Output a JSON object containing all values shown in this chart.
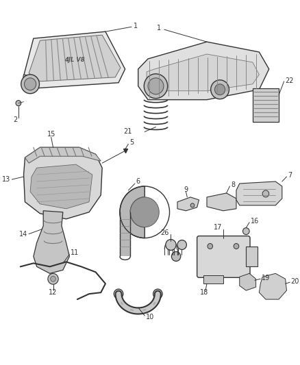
{
  "bg_color": "#ffffff",
  "fig_width": 4.38,
  "fig_height": 5.33,
  "dpi": 100,
  "line_color": "#333333",
  "fill_color": "#d8d8d8",
  "fill_dark": "#aaaaaa",
  "label_fontsize": 7
}
